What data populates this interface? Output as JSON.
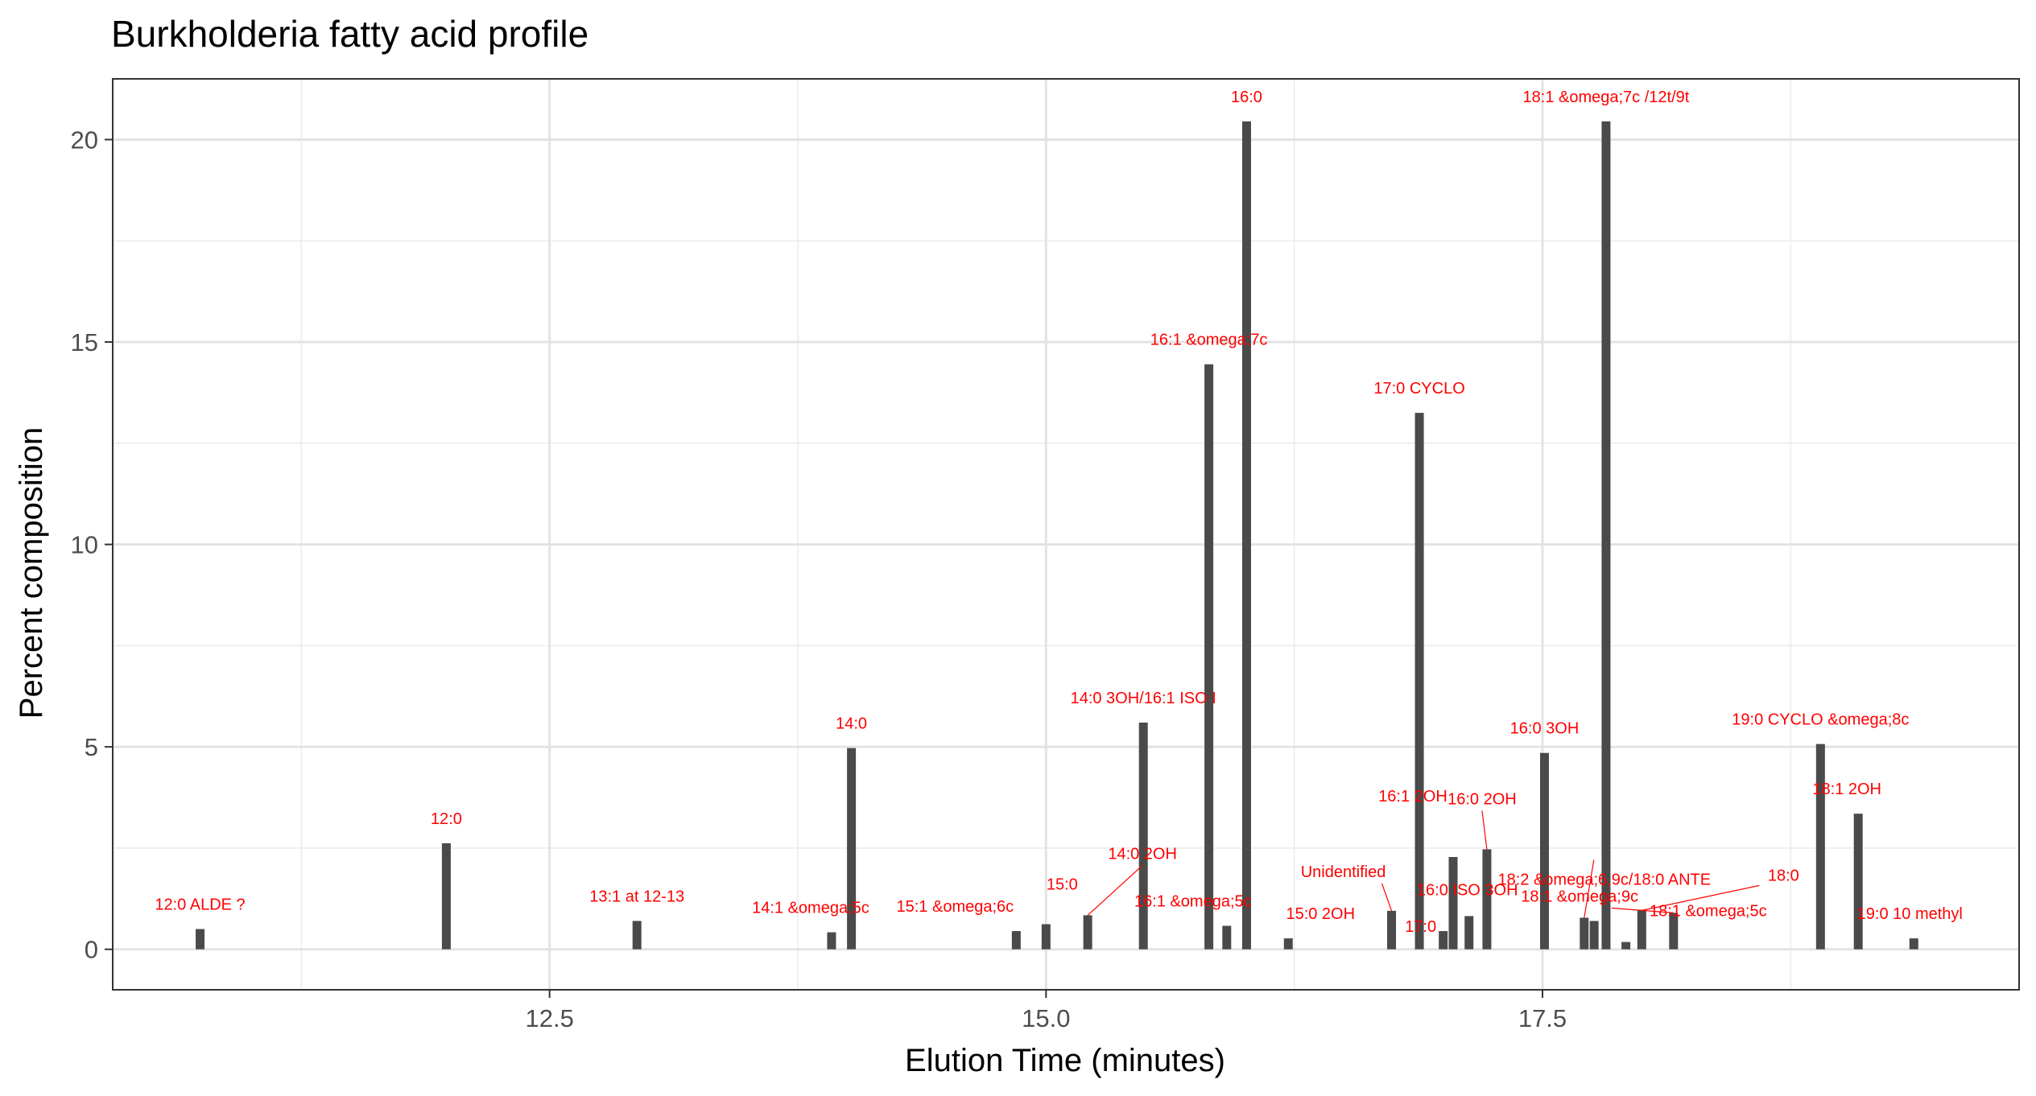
{
  "chart_data": {
    "type": "bar",
    "title": "Burkholderia fatty acid profile",
    "xlabel": "Elution Time (minutes)",
    "ylabel": "Percent composition",
    "xlim": [
      10.3,
      19.9
    ],
    "ylim": [
      -1.0,
      21.5
    ],
    "x_ticks": [
      12.5,
      15.0,
      17.5
    ],
    "x_tick_labels": [
      "12.5",
      "15.0",
      "17.5"
    ],
    "x_minor_ticks": [
      11.25,
      13.75,
      16.25,
      18.75
    ],
    "y_ticks": [
      0,
      5,
      10,
      15,
      20
    ],
    "y_tick_labels": [
      "0",
      "5",
      "10",
      "15",
      "20"
    ],
    "grid": true,
    "bar_color": "#4a4a4a",
    "label_color": "#ff0000",
    "peaks": [
      {
        "x": 10.74,
        "y": 0.5,
        "label": "12:0 ALDE ?"
      },
      {
        "x": 11.98,
        "y": 2.62,
        "label": "12:0"
      },
      {
        "x": 12.94,
        "y": 0.7,
        "label": "13:1 at 12-13"
      },
      {
        "x": 13.92,
        "y": 0.42,
        "label": "14:1 &omega;5c"
      },
      {
        "x": 14.02,
        "y": 4.97,
        "label": "14:0"
      },
      {
        "x": 14.85,
        "y": 0.45,
        "label": "15:1 &omega;6c"
      },
      {
        "x": 15.0,
        "y": 0.62,
        "label": "15:0"
      },
      {
        "x": 15.21,
        "y": 0.84,
        "label": "14:0 2OH"
      },
      {
        "x": 15.49,
        "y": 5.6,
        "label": "14:0 3OH/16:1 ISO I"
      },
      {
        "x": 15.82,
        "y": 14.45,
        "label": "16:1 &omega;7c"
      },
      {
        "x": 15.91,
        "y": 0.58,
        "label": "16:1 &omega;5c"
      },
      {
        "x": 16.01,
        "y": 20.45,
        "label": "16:0"
      },
      {
        "x": 16.22,
        "y": 0.27,
        "label": "15:0 2OH"
      },
      {
        "x": 16.74,
        "y": 0.95,
        "label": "Unidentified"
      },
      {
        "x": 16.88,
        "y": 13.25,
        "label": "17:0 CYCLO"
      },
      {
        "x": 17.0,
        "y": 0.45,
        "label": "17:0"
      },
      {
        "x": 17.05,
        "y": 2.28,
        "label": "16:1 2OH"
      },
      {
        "x": 17.13,
        "y": 0.82,
        "label": "16:0 ISO 3OH"
      },
      {
        "x": 17.22,
        "y": 2.47,
        "label": "16:0 2OH"
      },
      {
        "x": 17.51,
        "y": 4.85,
        "label": "16:0 3OH"
      },
      {
        "x": 17.71,
        "y": 0.78,
        "label": "18:2 &omega;6,9c/18:0 ANTE"
      },
      {
        "x": 17.76,
        "y": 0.7,
        "label": "18:1 &omega;9c"
      },
      {
        "x": 17.82,
        "y": 20.45,
        "label": "18:1 &omega;7c /12t/9t"
      },
      {
        "x": 17.92,
        "y": 0.18,
        "label": ""
      },
      {
        "x": 18.0,
        "y": 0.96,
        "label": "18:0"
      },
      {
        "x": 18.16,
        "y": 0.9,
        "label": "18:1 &omega;5c"
      },
      {
        "x": 18.9,
        "y": 5.07,
        "label": "19:0 CYCLO &omega;8c"
      },
      {
        "x": 19.09,
        "y": 3.35,
        "label": "18:1 2OH"
      },
      {
        "x": 19.37,
        "y": 0.27,
        "label": "19:0 10 methyl"
      }
    ]
  }
}
